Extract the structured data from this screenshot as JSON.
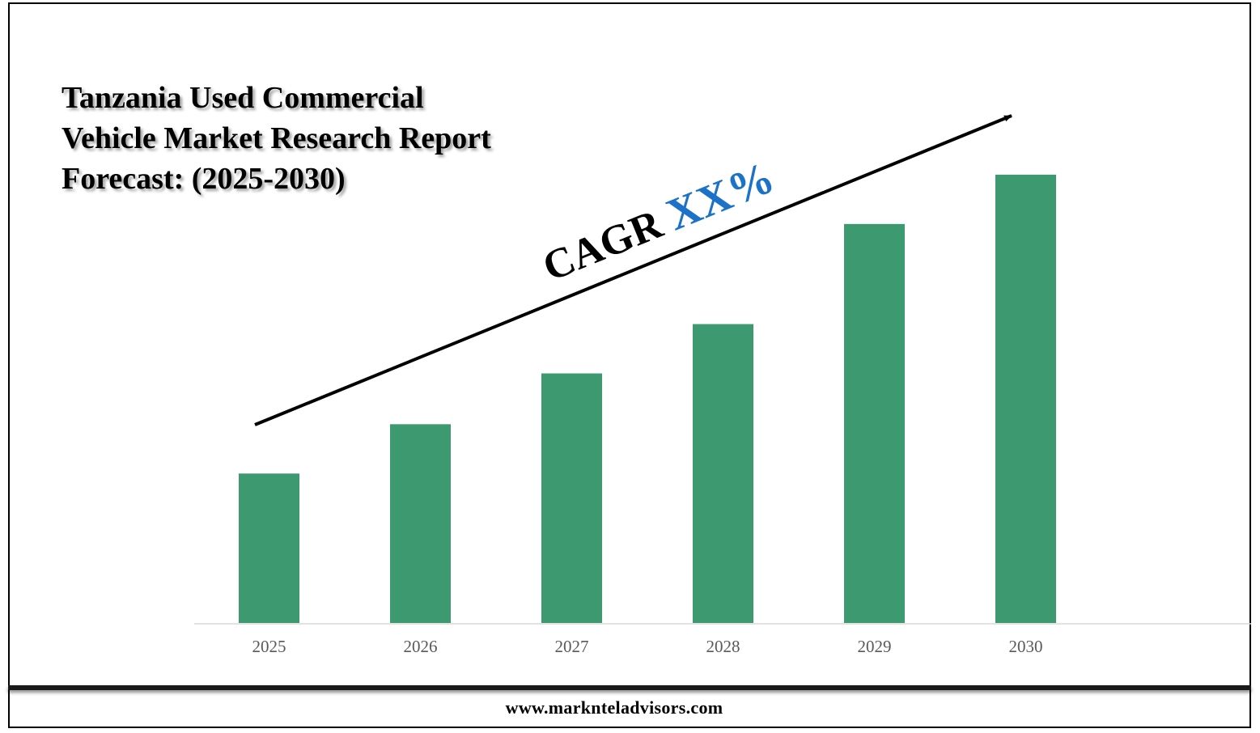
{
  "chart_data": {
    "type": "bar",
    "title": "Tanzania Used Commercial Vehicle Market Research Report Forecast: (2025-2030)",
    "categories": [
      "2025",
      "2026",
      "2027",
      "2028",
      "2029",
      "2030"
    ],
    "values": [
      1.0,
      1.33,
      1.67,
      2.0,
      2.67,
      3.0
    ],
    "bar_color": "#3D9970",
    "xlabel": "",
    "ylabel": "",
    "ylim": [
      0,
      3.4
    ],
    "grid": false,
    "legend": "none",
    "annotation": {
      "prefix": "CAGR ",
      "value": "XX%",
      "value_color": "#1C72C8",
      "trend_arrow": "rising"
    }
  },
  "footer": {
    "url": "www.marknteladvisors.com"
  }
}
